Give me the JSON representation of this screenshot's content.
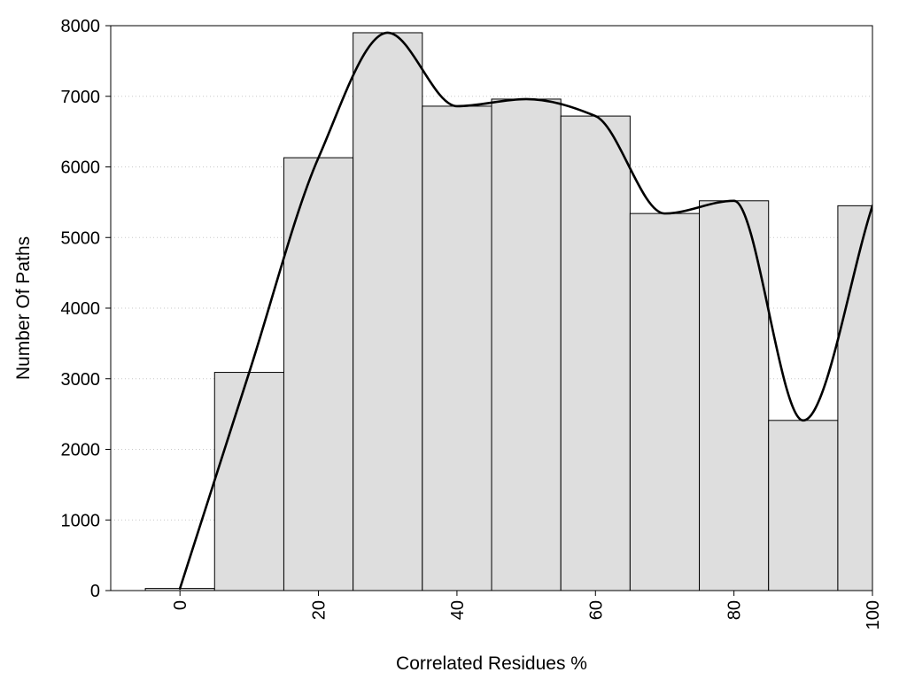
{
  "chart_data": {
    "type": "bar",
    "title": "",
    "xlabel": "Correlated Residues %",
    "ylabel": "Number Of Paths",
    "xlim": [
      -10,
      100
    ],
    "ylim": [
      0,
      8000
    ],
    "x_ticks": [
      0,
      20,
      40,
      60,
      80,
      100
    ],
    "y_ticks": [
      0,
      1000,
      2000,
      3000,
      4000,
      5000,
      6000,
      7000,
      8000
    ],
    "bin_width": 10,
    "bins": [
      {
        "center": 0,
        "value": 30
      },
      {
        "center": 10,
        "value": 3090
      },
      {
        "center": 20,
        "value": 6130
      },
      {
        "center": 30,
        "value": 7900
      },
      {
        "center": 40,
        "value": 6860
      },
      {
        "center": 50,
        "value": 6960
      },
      {
        "center": 60,
        "value": 6720
      },
      {
        "center": 70,
        "value": 5340
      },
      {
        "center": 80,
        "value": 5520
      },
      {
        "center": 90,
        "value": 2410
      },
      {
        "center": 100,
        "value": 5450
      }
    ],
    "trend_line": {
      "x": [
        0,
        10,
        20,
        30,
        40,
        50,
        60,
        70,
        80,
        90,
        100
      ],
      "y": [
        30,
        3090,
        6130,
        7900,
        6860,
        6960,
        6720,
        5340,
        5520,
        2410,
        5450
      ]
    },
    "grid": {
      "y": true,
      "x": false
    },
    "colors": {
      "bar_fill": "#dedede",
      "bar_edge": "#000000",
      "line": "#000000",
      "grid": "#c8c8c8"
    }
  }
}
